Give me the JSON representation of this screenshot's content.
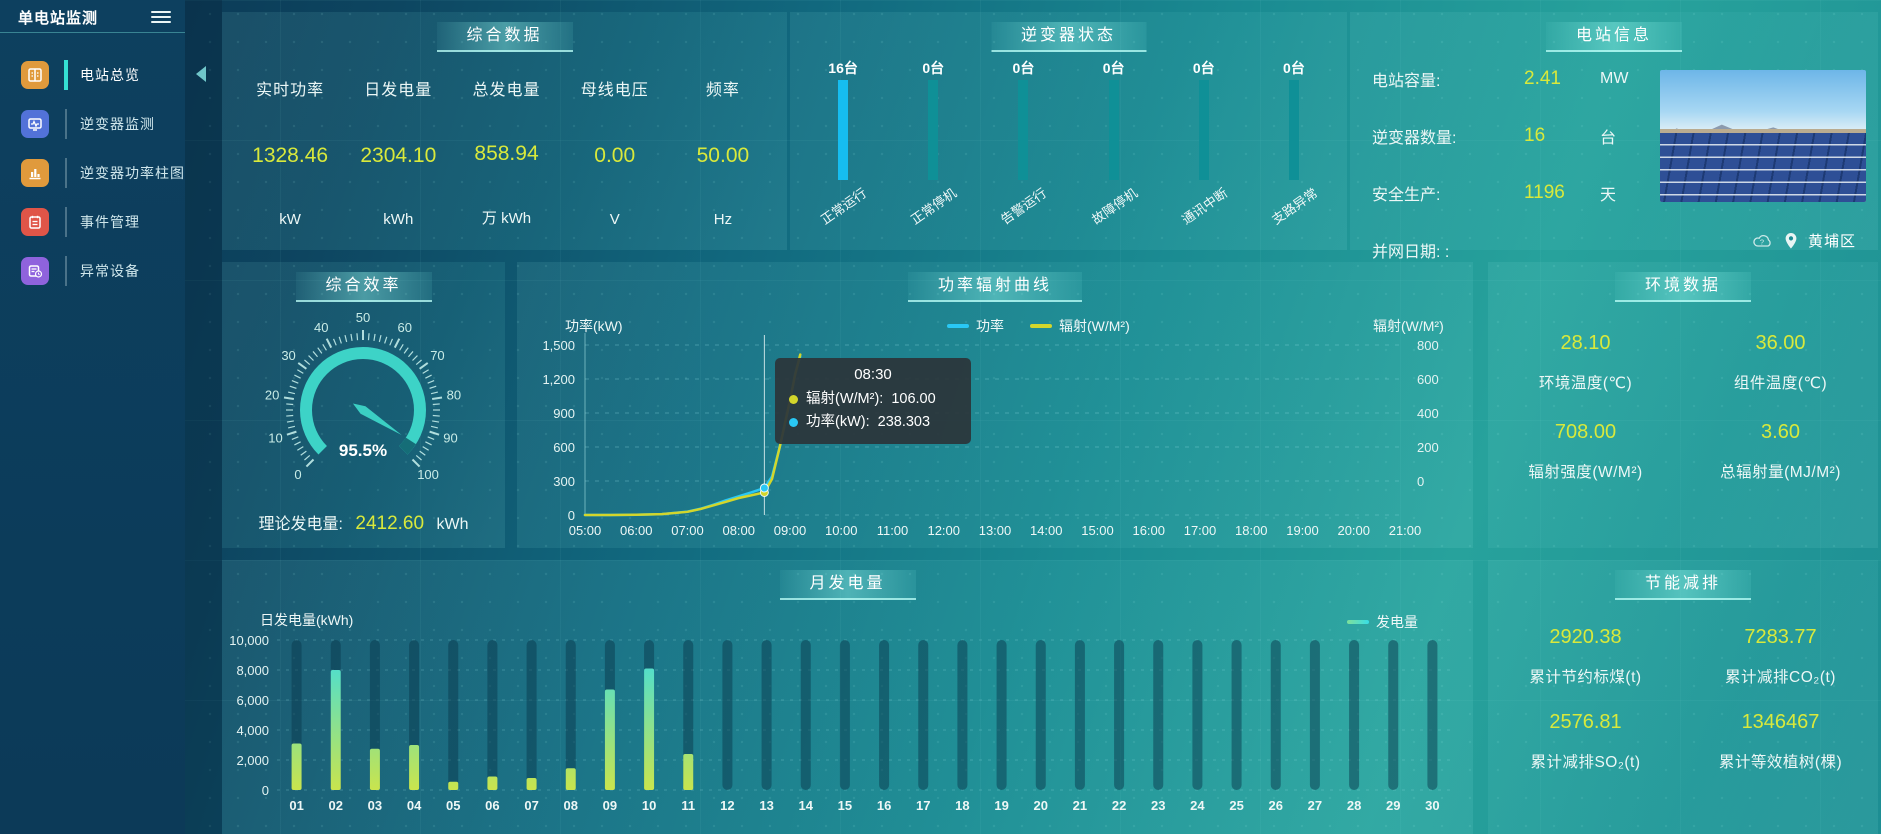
{
  "sidebar": {
    "title": "单电站监测",
    "items": [
      {
        "label": "电站总览",
        "icon": "station-overview-icon",
        "color": "#e09a3c",
        "active": true
      },
      {
        "label": "逆变器监测",
        "icon": "inverter-monitor-icon",
        "color": "#5272d8",
        "active": false
      },
      {
        "label": "逆变器功率柱图",
        "icon": "inverter-power-bars-icon",
        "color": "#e09a3c",
        "active": false
      },
      {
        "label": "事件管理",
        "icon": "event-management-icon",
        "color": "#e05548",
        "active": false
      },
      {
        "label": "异常设备",
        "icon": "abnormal-device-icon",
        "color": "#8f63dd",
        "active": false
      }
    ]
  },
  "summary": {
    "title": "综合数据",
    "metrics": [
      {
        "label": "实时功率",
        "value": "1328.46",
        "unit": "kW"
      },
      {
        "label": "日发电量",
        "value": "2304.10",
        "unit": "kWh"
      },
      {
        "label": "总发电量",
        "value": "858.94",
        "unit": "万 kWh"
      },
      {
        "label": "母线电压",
        "value": "0.00",
        "unit": "V"
      },
      {
        "label": "频率",
        "value": "50.00",
        "unit": "Hz"
      }
    ]
  },
  "inverter_status": {
    "title": "逆变器状态",
    "bars": [
      {
        "count": "16台",
        "label": "正常运行",
        "color": "#16bdf0"
      },
      {
        "count": "0台",
        "label": "正常停机",
        "color": "#0f9097"
      },
      {
        "count": "0台",
        "label": "告警运行",
        "color": "#0f9097"
      },
      {
        "count": "0台",
        "label": "故障停机",
        "color": "#0f9097"
      },
      {
        "count": "0台",
        "label": "通讯中断",
        "color": "#0f9097"
      },
      {
        "count": "0台",
        "label": "支路异常",
        "color": "#0f9097"
      }
    ]
  },
  "station_info": {
    "title": "电站信息",
    "rows": [
      {
        "label": "电站容量:",
        "value": "2.41",
        "unit": "MW"
      },
      {
        "label": "逆变器数量:",
        "value": "16",
        "unit": "台"
      },
      {
        "label": "安全生产:",
        "value": "1196",
        "unit": "天"
      },
      {
        "label": "并网日期: :",
        "value": "",
        "unit": ""
      }
    ],
    "district": "黄埔区"
  },
  "efficiency": {
    "title": "综合效率",
    "value": 95.5,
    "value_label": "95.5%",
    "min": 0,
    "max": 100,
    "theory_label": "理论发电量:",
    "theory_value": "2412.60",
    "theory_unit": "kWh",
    "accent": "#3dd3c7"
  },
  "environment": {
    "title": "环境数据",
    "metrics": [
      {
        "value": "28.10",
        "label": "环境温度(℃)"
      },
      {
        "value": "36.00",
        "label": "组件温度(℃)"
      },
      {
        "value": "708.00",
        "label": "辐射强度(W/M²)"
      },
      {
        "value": "3.60",
        "label": "总辐射量(MJ/M²)"
      }
    ]
  },
  "savings": {
    "title": "节能减排",
    "metrics": [
      {
        "value": "2920.38",
        "label": "累计节约标煤(t)"
      },
      {
        "value": "7283.77",
        "label": "累计减排CO₂(t)"
      },
      {
        "value": "2576.81",
        "label": "累计减排SO₂(t)"
      },
      {
        "value": "1346467",
        "label": "累计等效植树(棵)"
      }
    ]
  },
  "chart_data": [
    {
      "type": "line",
      "title": "功率辐射曲线",
      "ylabel_left": "功率(kW)",
      "ylabel_right": "辐射(W/M²)",
      "ylim_left": [
        0,
        1500
      ],
      "ylim_right": [
        0,
        800
      ],
      "yticks_left": [
        "1,500",
        "1,200",
        "900",
        "600",
        "300",
        "0"
      ],
      "yticks_right": [
        "800",
        "600",
        "400",
        "200",
        "0"
      ],
      "x_range": [
        5,
        21
      ],
      "xticks": [
        "05:00",
        "06:00",
        "07:00",
        "08:00",
        "09:00",
        "10:00",
        "11:00",
        "12:00",
        "13:00",
        "14:00",
        "15:00",
        "16:00",
        "17:00",
        "18:00",
        "19:00",
        "20:00",
        "21:00"
      ],
      "grid": "dashed",
      "legend": [
        {
          "name": "功率",
          "color": "#29c8f5"
        },
        {
          "name": "辐射(W/M²)",
          "color": "#d3d62b"
        }
      ],
      "series": [
        {
          "name": "功率",
          "axis": "left",
          "color": "#29c8f5",
          "points": [
            [
              5,
              0
            ],
            [
              5.5,
              0
            ],
            [
              6,
              2
            ],
            [
              6.5,
              8
            ],
            [
              7,
              30
            ],
            [
              7.25,
              55
            ],
            [
              7.5,
              90
            ],
            [
              7.75,
              130
            ],
            [
              8,
              165
            ],
            [
              8.25,
              200
            ],
            [
              8.5,
              238.3
            ],
            [
              8.65,
              340
            ],
            [
              8.8,
              600
            ],
            [
              9,
              1000
            ],
            [
              9.1,
              1250
            ],
            [
              9.2,
              1400
            ]
          ]
        },
        {
          "name": "辐射(W/M²)",
          "axis": "right",
          "color": "#d3d62b",
          "points": [
            [
              5,
              0
            ],
            [
              5.5,
              0
            ],
            [
              6,
              1
            ],
            [
              6.5,
              4
            ],
            [
              7,
              15
            ],
            [
              7.25,
              28
            ],
            [
              7.5,
              45
            ],
            [
              7.75,
              62
            ],
            [
              8,
              80
            ],
            [
              8.25,
              93
            ],
            [
              8.5,
              106
            ],
            [
              8.65,
              170
            ],
            [
              8.8,
              320
            ],
            [
              9,
              540
            ],
            [
              9.1,
              660
            ],
            [
              9.2,
              755
            ]
          ]
        }
      ],
      "tooltip": {
        "time": "08:30",
        "x": 8.5,
        "rows": [
          {
            "label": "辐射(W/M²):",
            "value": "106.00",
            "color": "#d3d62b"
          },
          {
            "label": "功率(kW):",
            "value": "238.303",
            "color": "#29c8f5"
          }
        ]
      }
    },
    {
      "type": "bar",
      "title": "月发电量",
      "ylabel": "日发电量(kWh)",
      "legend": "发电量",
      "ylim": [
        0,
        10000
      ],
      "yticks": [
        "10,000",
        "8,000",
        "6,000",
        "4,000",
        "2,000",
        "0"
      ],
      "categories": [
        "01",
        "02",
        "03",
        "04",
        "05",
        "06",
        "07",
        "08",
        "09",
        "10",
        "11",
        "12",
        "13",
        "14",
        "15",
        "16",
        "17",
        "18",
        "19",
        "20",
        "21",
        "22",
        "23",
        "24",
        "25",
        "26",
        "27",
        "28",
        "29",
        "30"
      ],
      "values": [
        3100,
        8000,
        2750,
        3000,
        550,
        900,
        800,
        1450,
        6700,
        8100,
        2400,
        0,
        0,
        0,
        0,
        0,
        0,
        0,
        0,
        0,
        0,
        0,
        0,
        0,
        0,
        0,
        0,
        0,
        0,
        0
      ],
      "bar_gradient": [
        "#c9e44d",
        "#38dde6"
      ],
      "track_color": "rgba(9,58,78,0.5)"
    }
  ]
}
